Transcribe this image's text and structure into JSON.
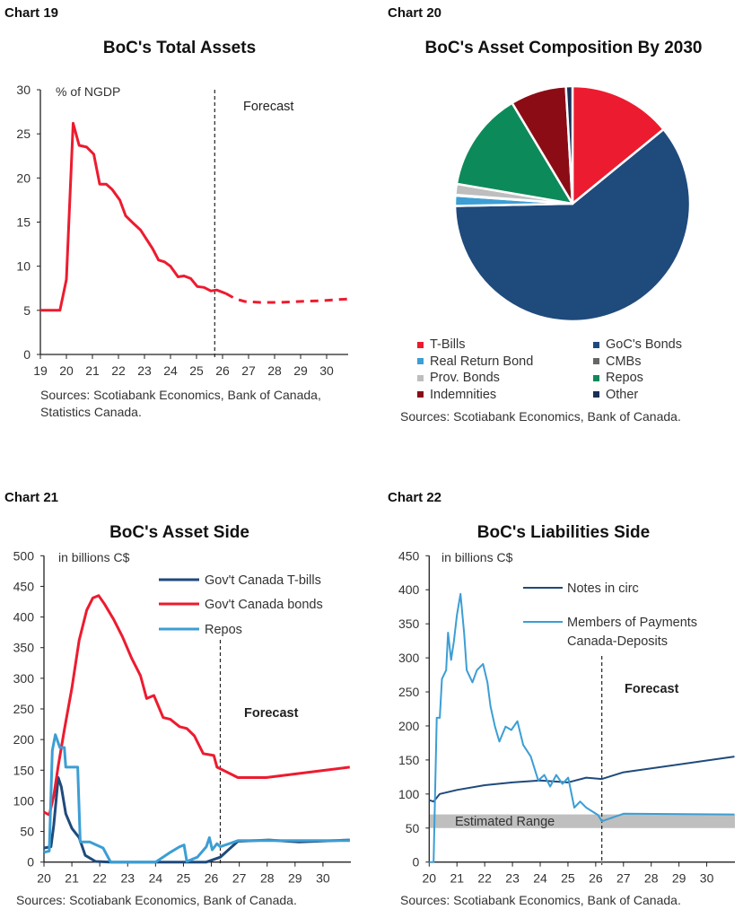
{
  "panels": [
    {
      "label": "Chart 19",
      "sources": [
        "Sources: Scotiabank Economics, Bank of Canada,",
        "Statistics Canada."
      ]
    },
    {
      "label": "Chart 20",
      "sources": [
        "Sources: Scotiabank Economics, Bank of Canada."
      ]
    },
    {
      "label": "Chart 21",
      "sources": [
        "Sources: Scotiabank Economics, Bank of Canada."
      ]
    },
    {
      "label": "Chart 22",
      "sources": [
        "Sources: Scotiabank Economics, Bank of Canada."
      ]
    }
  ],
  "chart_data": [
    {
      "type": "line",
      "title": "BoC's Total Assets",
      "unit_label": "% of NGDP",
      "forecast_label": "Forecast",
      "forecast_start": 25.7,
      "xlim": [
        19,
        31
      ],
      "ylim": [
        0,
        30
      ],
      "xticks": [
        "19",
        "20",
        "21",
        "22",
        "23",
        "24",
        "25",
        "26",
        "27",
        "28",
        "29",
        "30"
      ],
      "yticks": [
        0,
        5,
        10,
        15,
        20,
        25,
        30
      ],
      "grid": false,
      "series": [
        {
          "color": "#ED1B2F",
          "style": "solid",
          "points": [
            [
              19,
              5
            ],
            [
              19.75,
              5.0
            ],
            [
              20.0,
              8.5
            ],
            [
              20.26,
              26.2
            ],
            [
              20.49,
              23.7
            ],
            [
              20.78,
              23.5
            ],
            [
              21.05,
              22.7
            ],
            [
              21.28,
              19.3
            ],
            [
              21.53,
              19.3
            ],
            [
              21.76,
              18.7
            ],
            [
              22.05,
              17.5
            ],
            [
              22.28,
              15.7
            ],
            [
              22.56,
              14.9
            ],
            [
              22.85,
              14.1
            ],
            [
              23.31,
              12.0
            ],
            [
              23.54,
              10.7
            ],
            [
              23.77,
              10.5
            ],
            [
              24.0,
              10.0
            ],
            [
              24.29,
              8.8
            ],
            [
              24.52,
              8.9
            ],
            [
              24.78,
              8.6
            ],
            [
              25.03,
              7.7
            ],
            [
              25.29,
              7.6
            ],
            [
              25.55,
              7.2
            ],
            [
              25.78,
              7.3
            ],
            [
              26.13,
              6.9
            ]
          ]
        },
        {
          "color": "#ED1B2F",
          "style": "dashed",
          "points": [
            [
              26.13,
              6.9
            ],
            [
              26.5,
              6.3
            ],
            [
              26.86,
              6.0
            ],
            [
              27.45,
              5.9
            ],
            [
              28.14,
              5.9
            ],
            [
              28.93,
              6.0
            ],
            [
              29.86,
              6.1
            ],
            [
              30.83,
              6.3
            ]
          ]
        }
      ]
    },
    {
      "type": "pie",
      "title": "BoC's Asset Composition By 2030",
      "unit": "% share",
      "slices": [
        {
          "name": "T-Bills",
          "value": 14.1,
          "color": "#ED1B2F"
        },
        {
          "name": "GoC's Bonds",
          "value": 60.6,
          "color": "#1F4A7C"
        },
        {
          "name": "Real Return Bond",
          "value": 1.4,
          "color": "#3C9ED4"
        },
        {
          "name": "CMBs",
          "value": 0.1,
          "color": "#666666"
        },
        {
          "name": "Prov. Bonds",
          "value": 1.5,
          "color": "#BEBEBE"
        },
        {
          "name": "Repos",
          "value": 13.7,
          "color": "#0D8A5A"
        },
        {
          "name": "Indemnities",
          "value": 7.7,
          "color": "#8C0C16"
        },
        {
          "name": "Other",
          "value": 0.9,
          "color": "#1A2F55"
        }
      ],
      "legend_order": [
        0,
        1,
        2,
        3,
        4,
        5,
        6,
        7
      ],
      "legend_position": "bottom"
    },
    {
      "type": "line",
      "title": "BoC's Asset Side",
      "unit_label": "in billions C$",
      "forecast_label": "Forecast",
      "forecast_start": 26.32,
      "xlim": [
        20,
        31
      ],
      "ylim": [
        0,
        500
      ],
      "xticks": [
        "20",
        "21",
        "22",
        "23",
        "24",
        "25",
        "26",
        "27",
        "28",
        "29",
        "30"
      ],
      "yticks": [
        0,
        50,
        100,
        150,
        200,
        250,
        300,
        350,
        400,
        450,
        500
      ],
      "grid": false,
      "legend_position": "top-right",
      "series": [
        {
          "name": "Gov't Canada T-bills",
          "color": "#1F4A7C",
          "style": "solid",
          "points": [
            [
              20,
              23
            ],
            [
              20.25,
              25
            ],
            [
              20.35,
              60
            ],
            [
              20.51,
              138
            ],
            [
              20.62,
              123
            ],
            [
              20.78,
              79
            ],
            [
              21.0,
              55
            ],
            [
              21.26,
              40
            ],
            [
              21.48,
              11
            ],
            [
              21.85,
              1
            ],
            [
              22.4,
              0
            ],
            [
              25.82,
              0
            ],
            [
              26.32,
              8
            ],
            [
              26.95,
              34
            ],
            [
              28.07,
              36
            ],
            [
              29.14,
              33
            ],
            [
              30.96,
              36
            ]
          ]
        },
        {
          "name": "Gov't Canada bonds",
          "color": "#ED1B2F",
          "style": "solid",
          "points": [
            [
              20,
              81.5
            ],
            [
              20.19,
              77
            ],
            [
              20.35,
              108
            ],
            [
              20.51,
              157
            ],
            [
              20.73,
              216
            ],
            [
              21.0,
              284
            ],
            [
              21.26,
              362
            ],
            [
              21.53,
              411
            ],
            [
              21.75,
              431
            ],
            [
              21.96,
              435
            ],
            [
              22.17,
              421
            ],
            [
              22.5,
              396
            ],
            [
              22.82,
              367
            ],
            [
              23.14,
              333
            ],
            [
              23.46,
              304
            ],
            [
              23.68,
              267
            ],
            [
              23.94,
              272
            ],
            [
              24.27,
              236
            ],
            [
              24.53,
              233
            ],
            [
              24.86,
              221
            ],
            [
              25.12,
              218
            ],
            [
              25.39,
              206
            ],
            [
              25.71,
              177
            ],
            [
              26.09,
              174
            ],
            [
              26.2,
              155
            ],
            [
              26.95,
              138
            ],
            [
              27.96,
              138
            ],
            [
              30.96,
              155
            ]
          ]
        },
        {
          "name": "Repos",
          "color": "#3C9ED4",
          "style": "solid",
          "points": [
            [
              20,
              16
            ],
            [
              20.19,
              18
            ],
            [
              20.3,
              182
            ],
            [
              20.41,
              208
            ],
            [
              20.57,
              187
            ],
            [
              20.73,
              187
            ],
            [
              20.78,
              155
            ],
            [
              21.21,
              155
            ],
            [
              21.3,
              33
            ],
            [
              21.64,
              33
            ],
            [
              22.12,
              23
            ],
            [
              22.39,
              0
            ],
            [
              24.0,
              0
            ],
            [
              24.53,
              16
            ],
            [
              24.86,
              25
            ],
            [
              25.02,
              28
            ],
            [
              25.12,
              1
            ],
            [
              25.5,
              8
            ],
            [
              25.82,
              25
            ],
            [
              25.93,
              40
            ],
            [
              26.03,
              20
            ],
            [
              26.2,
              30
            ],
            [
              26.32,
              25
            ],
            [
              26.95,
              35
            ],
            [
              30.96,
              35
            ]
          ]
        }
      ]
    },
    {
      "type": "line",
      "title": "BoC's Liabilities Side",
      "unit_label": "in billions C$",
      "forecast_label": "Forecast",
      "forecast_start": 26.22,
      "xlim": [
        20,
        31
      ],
      "ylim": [
        0,
        450
      ],
      "xticks": [
        "20",
        "21",
        "22",
        "23",
        "24",
        "25",
        "26",
        "27",
        "28",
        "29",
        "30"
      ],
      "yticks": [
        0,
        50,
        100,
        150,
        200,
        250,
        300,
        350,
        400,
        450
      ],
      "grid": false,
      "legend_position": "top-right",
      "band": {
        "label": "Estimated Range",
        "range": [
          50,
          70
        ],
        "color": "#BFBFBF"
      },
      "series": [
        {
          "name": "Notes in circ",
          "color": "#1F4A7C",
          "style": "solid",
          "points": [
            [
              20,
              91
            ],
            [
              20.16,
              89
            ],
            [
              20.38,
              100
            ],
            [
              21,
              106
            ],
            [
              22,
              113
            ],
            [
              23,
              117
            ],
            [
              24,
              120
            ],
            [
              25,
              117
            ],
            [
              25.66,
              124
            ],
            [
              26.22,
              122
            ],
            [
              27,
              132
            ],
            [
              31,
              155
            ]
          ]
        },
        {
          "name": "Members of Payments Canada-Deposits",
          "color": "#3C9ED4",
          "style": "solid",
          "points": [
            [
              20,
              0
            ],
            [
              20.16,
              0
            ],
            [
              20.27,
              212
            ],
            [
              20.38,
              212
            ],
            [
              20.46,
              269
            ],
            [
              20.61,
              282
            ],
            [
              20.68,
              337
            ],
            [
              20.79,
              297
            ],
            [
              20.89,
              324
            ],
            [
              21.0,
              363
            ],
            [
              21.13,
              394
            ],
            [
              21.26,
              335
            ],
            [
              21.35,
              282
            ],
            [
              21.56,
              264
            ],
            [
              21.72,
              282
            ],
            [
              21.94,
              291
            ],
            [
              22.1,
              264
            ],
            [
              22.21,
              229
            ],
            [
              22.37,
              199
            ],
            [
              22.53,
              177
            ],
            [
              22.75,
              199
            ],
            [
              22.96,
              194
            ],
            [
              23.18,
              207
            ],
            [
              23.39,
              172
            ],
            [
              23.66,
              155
            ],
            [
              23.93,
              120
            ],
            [
              24.15,
              128
            ],
            [
              24.36,
              111
            ],
            [
              24.58,
              128
            ],
            [
              24.8,
              115
            ],
            [
              25.01,
              124
            ],
            [
              25.23,
              80
            ],
            [
              25.44,
              89
            ],
            [
              25.66,
              80
            ],
            [
              26.09,
              69
            ],
            [
              26.22,
              60
            ],
            [
              27,
              71
            ],
            [
              31,
              70
            ]
          ]
        }
      ]
    }
  ]
}
